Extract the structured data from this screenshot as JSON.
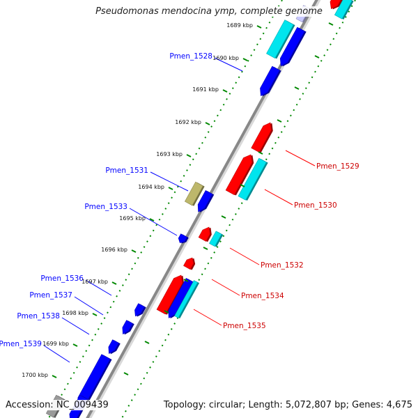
{
  "title": "Pseudomonas mendocina ymp, complete genome",
  "footer": {
    "accession": "Accession: NC_009439",
    "topology": "Topology: circular; Length: 5,072,807 bp; Genes: 4,675"
  },
  "colors": {
    "forward": "#ff0000",
    "reverse": "#0000ff",
    "rna": "#00e5ee",
    "other": "#bdb76b",
    "tick": "#008800",
    "backbone": "#888888"
  },
  "kbp_labels": [
    "1689 kbp",
    "1690 kbp",
    "1691 kbp",
    "1692 kbp",
    "1693 kbp",
    "1694 kbp",
    "1695 kbp",
    "1696 kbp",
    "1697 kbp",
    "1698 kbp",
    "1699 kbp",
    "1700 kbp"
  ],
  "gene_labels": {
    "left": [
      "Pmen_1528",
      "Pmen_1531",
      "Pmen_1533",
      "Pmen_1536",
      "Pmen_1537",
      "Pmen_1538",
      "Pmen_1539"
    ],
    "right": [
      "Pmen_1529",
      "Pmen_1530",
      "Pmen_1532",
      "Pmen_1534",
      "Pmen_1535"
    ]
  }
}
